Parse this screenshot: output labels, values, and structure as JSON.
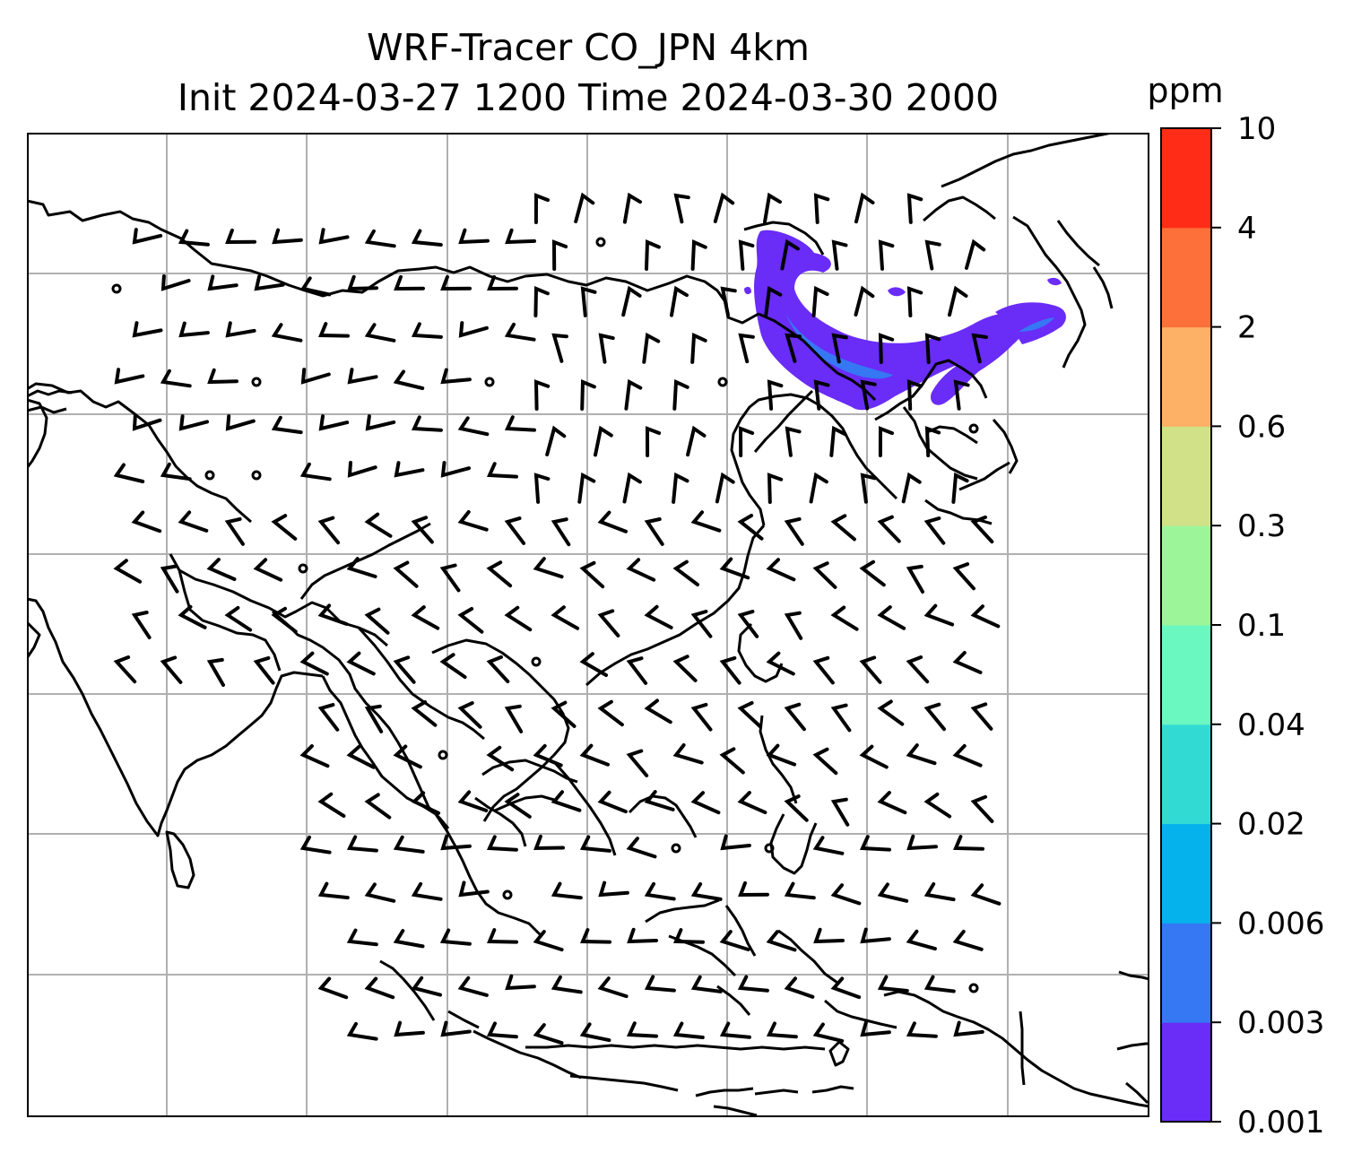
{
  "title": {
    "line1": "WRF-Tracer CO_JPN 4km",
    "line2": "Init 2024-03-27 1200 Time 2024-03-30 2000"
  },
  "colorbar": {
    "unit": "ppm",
    "levels": [
      "0.001",
      "0.003",
      "0.006",
      "0.02",
      "0.04",
      "0.1",
      "0.3",
      "0.6",
      "2",
      "4",
      "10"
    ],
    "colors": [
      "#6a2cf7",
      "#3677f4",
      "#05b2ec",
      "#31dbd4",
      "#6bf7c0",
      "#9df59a",
      "#d0e187",
      "#fdb166",
      "#fd7039",
      "#ff2c17"
    ]
  },
  "map": {
    "gridline_color": "#b0b0b0",
    "coastline_color": "#000000",
    "plume_color": "#6a2cf7",
    "plume_core_color": "#3677f4"
  }
}
